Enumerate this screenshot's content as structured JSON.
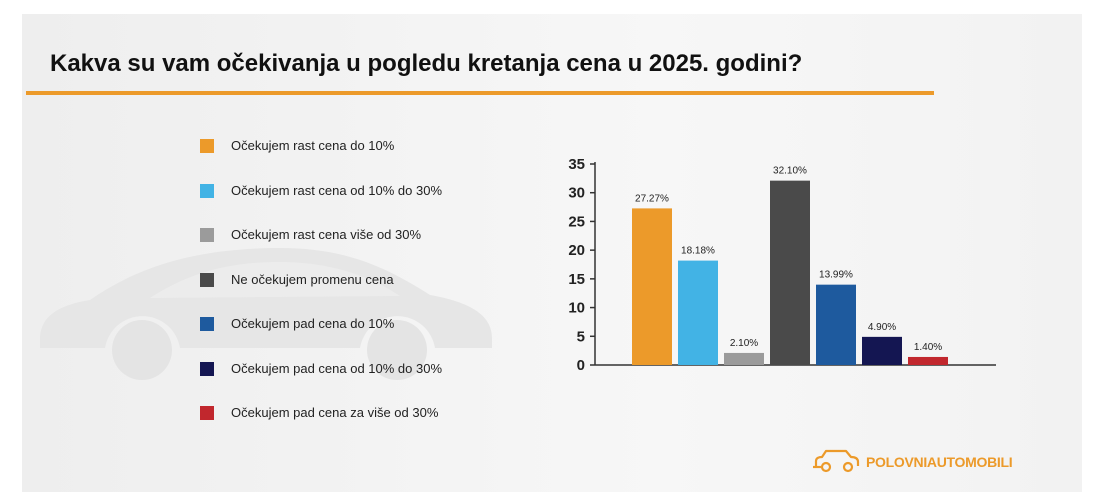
{
  "title": "Kakva su vam očekivanja u pogledu kretanja cena u 2025. godini?",
  "colors": {
    "accent": "#ec9a2a",
    "light_blue": "#42b3e5",
    "gray": "#9b9b9b",
    "dark_gray": "#4a4a4a",
    "blue": "#1e5a9e",
    "navy": "#141652",
    "red": "#c1272d",
    "axis": "#333333"
  },
  "legend": [
    {
      "label": "Očekujem rast cena do 10%",
      "color": "#ec9a2a"
    },
    {
      "label": "Očekujem rast cena od 10% do 30%",
      "color": "#42b3e5"
    },
    {
      "label": "Očekujem rast cena više od 30%",
      "color": "#9b9b9b"
    },
    {
      "label": "Ne očekujem promenu cena",
      "color": "#4a4a4a"
    },
    {
      "label": "Očekujem pad cena do 10%",
      "color": "#1e5a9e"
    },
    {
      "label": "Očekujem pad cena od 10% do 30%",
      "color": "#141652"
    },
    {
      "label": "Očekujem pad cena za više od 30%",
      "color": "#c1272d"
    }
  ],
  "chart_data": {
    "type": "bar",
    "categories": [
      "Očekujem rast cena do 10%",
      "Očekujem rast cena od 10% do 30%",
      "Očekujem rast cena više od 30%",
      "Ne očekujem promenu cena",
      "Očekujem pad cena do 10%",
      "Očekujem pad cena od 10% do 30%",
      "Očekujem pad cena za više od 30%"
    ],
    "values": [
      27.27,
      18.18,
      2.1,
      32.1,
      13.99,
      4.9,
      1.4
    ],
    "data_labels": [
      "27.27%",
      "18.18%",
      "2.10%",
      "32.10%",
      "13.99%",
      "4.90%",
      "1.40%"
    ],
    "colors": [
      "#ec9a2a",
      "#42b3e5",
      "#9b9b9b",
      "#4a4a4a",
      "#1e5a9e",
      "#141652",
      "#c1272d"
    ],
    "ylim": [
      0,
      35
    ],
    "yticks": [
      "0",
      "5",
      "10",
      "15",
      "20",
      "25",
      "30",
      "35"
    ],
    "grid": false,
    "legend_position": "left",
    "title": "",
    "xlabel": "",
    "ylabel": ""
  },
  "logo": {
    "part1": "POLOVNI",
    "part2": "AUTOMOBILI"
  }
}
